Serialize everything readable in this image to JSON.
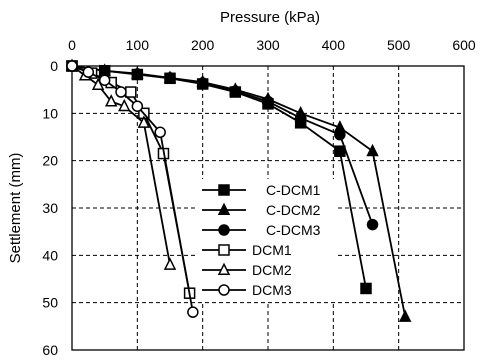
{
  "chart_data": {
    "type": "line",
    "xlabel": "Pressure (kPa)",
    "ylabel": "Settlement (mm)",
    "xlim": [
      0,
      600
    ],
    "ylim": [
      60,
      0
    ],
    "x_axis_position": "top",
    "y_inverted": true,
    "x_ticks": [
      "0",
      "100",
      "200",
      "300",
      "400",
      "500",
      "600"
    ],
    "y_ticks": [
      "0",
      "10",
      "20",
      "30",
      "40",
      "50",
      "60"
    ],
    "grid": "dashed",
    "legend_position": "center",
    "series": [
      {
        "name": "C-DCM1",
        "marker": "square",
        "filled": true,
        "points": [
          [
            0,
            0
          ],
          [
            50,
            1
          ],
          [
            100,
            1.8
          ],
          [
            150,
            2.6
          ],
          [
            200,
            3.8
          ],
          [
            250,
            5.5
          ],
          [
            300,
            8
          ],
          [
            350,
            12
          ],
          [
            410,
            18
          ],
          [
            450,
            47
          ]
        ]
      },
      {
        "name": "C-DCM2",
        "marker": "triangle",
        "filled": true,
        "points": [
          [
            0,
            0
          ],
          [
            50,
            1
          ],
          [
            100,
            1.6
          ],
          [
            150,
            2.5
          ],
          [
            200,
            3.4
          ],
          [
            250,
            5
          ],
          [
            300,
            7
          ],
          [
            350,
            10
          ],
          [
            410,
            13
          ],
          [
            460,
            18
          ],
          [
            510,
            53
          ]
        ]
      },
      {
        "name": "C-DCM3",
        "marker": "circle",
        "filled": true,
        "points": [
          [
            0,
            0
          ],
          [
            50,
            1
          ],
          [
            100,
            1.7
          ],
          [
            150,
            2.5
          ],
          [
            200,
            3.6
          ],
          [
            250,
            5.3
          ],
          [
            300,
            7.5
          ],
          [
            350,
            11
          ],
          [
            410,
            14.5
          ],
          [
            460,
            33.5
          ]
        ]
      },
      {
        "name": "DCM1",
        "marker": "square",
        "filled": false,
        "points": [
          [
            0,
            0
          ],
          [
            30,
            1.5
          ],
          [
            60,
            3.5
          ],
          [
            90,
            5.5
          ],
          [
            110,
            10
          ],
          [
            140,
            18.5
          ],
          [
            180,
            48
          ]
        ]
      },
      {
        "name": "DCM2",
        "marker": "triangle",
        "filled": false,
        "points": [
          [
            0,
            0
          ],
          [
            20,
            2
          ],
          [
            40,
            4
          ],
          [
            60,
            7.5
          ],
          [
            80,
            8.5
          ],
          [
            110,
            12
          ],
          [
            150,
            42
          ]
        ]
      },
      {
        "name": "DCM3",
        "marker": "circle",
        "filled": false,
        "points": [
          [
            0,
            0
          ],
          [
            25,
            1.3
          ],
          [
            50,
            3
          ],
          [
            75,
            5.5
          ],
          [
            100,
            8.5
          ],
          [
            135,
            14
          ],
          [
            185,
            52
          ]
        ]
      }
    ]
  }
}
